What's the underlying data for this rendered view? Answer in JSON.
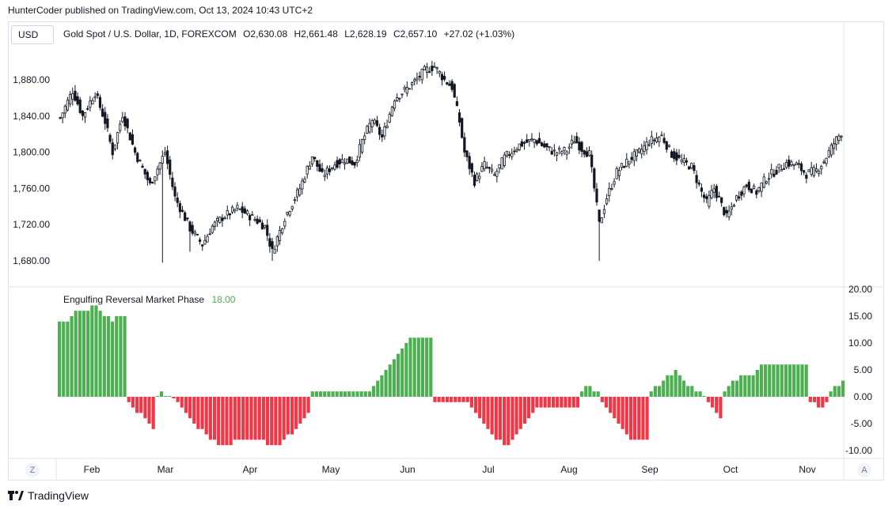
{
  "caption": "HunterCoder published on TradingView.com, Oct 13, 2024 10:43 UTC+2",
  "currency_button": "USD",
  "symbol": {
    "name": "Gold Spot / U.S. Dollar, 1D, FOREXCOM",
    "open": "O2,630.08",
    "high": "H2,661.48",
    "low": "L2,628.19",
    "close": "C2,657.10",
    "change": "+27.02 (+1.03%)"
  },
  "indicator": {
    "name": "Engulfing Reversal Market Phase",
    "value": "18.00"
  },
  "bottom_buttons": {
    "left": "Z",
    "right": "A"
  },
  "logo_text": "TradingView",
  "colors": {
    "up": "#4caf50",
    "down": "#f23645",
    "candle": "#131722",
    "grid": "#f0f3fa"
  },
  "chart_data": [
    {
      "type": "candlestick",
      "title": "Gold Spot / U.S. Dollar, 1D, FOREXCOM",
      "yticks": [
        "1,680.00",
        "1,720.00",
        "1,760.00",
        "1,800.00",
        "1,840.00",
        "1,880.00"
      ],
      "ylim": [
        1664,
        1902
      ],
      "xticks": [
        "Feb",
        "Mar",
        "Apr",
        "May",
        "Jun",
        "Jul",
        "Aug",
        "Sep",
        "Oct",
        "Nov"
      ],
      "close_path": [
        [
          0,
          1838
        ],
        [
          5,
          1868
        ],
        [
          9,
          1840
        ],
        [
          14,
          1866
        ],
        [
          18,
          1834
        ],
        [
          21,
          1800
        ],
        [
          25,
          1842
        ],
        [
          30,
          1800
        ],
        [
          36,
          1764
        ],
        [
          42,
          1800
        ],
        [
          46,
          1750
        ],
        [
          52,
          1716
        ],
        [
          57,
          1698
        ],
        [
          61,
          1718
        ],
        [
          65,
          1728
        ],
        [
          71,
          1738
        ],
        [
          77,
          1728
        ],
        [
          82,
          1718
        ],
        [
          85,
          1690
        ],
        [
          90,
          1728
        ],
        [
          96,
          1760
        ],
        [
          101,
          1796
        ],
        [
          105,
          1774
        ],
        [
          110,
          1787
        ],
        [
          114,
          1792
        ],
        [
          118,
          1788
        ],
        [
          121,
          1812
        ],
        [
          125,
          1836
        ],
        [
          129,
          1816
        ],
        [
          134,
          1860
        ],
        [
          138,
          1868
        ],
        [
          142,
          1878
        ],
        [
          146,
          1890
        ],
        [
          150,
          1895
        ],
        [
          154,
          1880
        ],
        [
          157,
          1872
        ],
        [
          160,
          1834
        ],
        [
          162,
          1800
        ],
        [
          166,
          1768
        ],
        [
          170,
          1786
        ],
        [
          174,
          1774
        ],
        [
          178,
          1794
        ],
        [
          184,
          1808
        ],
        [
          190,
          1814
        ],
        [
          194,
          1806
        ],
        [
          198,
          1800
        ],
        [
          203,
          1802
        ],
        [
          206,
          1814
        ],
        [
          209,
          1804
        ],
        [
          212,
          1798
        ],
        [
          214,
          1760
        ],
        [
          216,
          1720
        ],
        [
          219,
          1750
        ],
        [
          223,
          1778
        ],
        [
          228,
          1792
        ],
        [
          232,
          1800
        ],
        [
          236,
          1812
        ],
        [
          241,
          1818
        ],
        [
          245,
          1798
        ],
        [
          249,
          1790
        ],
        [
          253,
          1784
        ],
        [
          257,
          1756
        ],
        [
          259,
          1744
        ],
        [
          262,
          1760
        ],
        [
          264,
          1748
        ],
        [
          267,
          1728
        ],
        [
          271,
          1750
        ],
        [
          275,
          1764
        ],
        [
          279,
          1756
        ],
        [
          283,
          1772
        ],
        [
          287,
          1780
        ],
        [
          291,
          1788
        ],
        [
          295,
          1786
        ],
        [
          299,
          1776
        ],
        [
          303,
          1780
        ],
        [
          306,
          1790
        ],
        [
          310,
          1810
        ],
        [
          313,
          1822
        ]
      ],
      "spikes": [
        [
          216,
          1680
        ],
        [
          52,
          1690
        ],
        [
          85,
          1680
        ],
        [
          41,
          1678
        ]
      ]
    },
    {
      "type": "bar",
      "title": "Engulfing Reversal Market Phase",
      "yticks": [
        "20.00",
        "15.00",
        "10.00",
        "5.00",
        "0.00",
        "-5.00",
        "-10.00"
      ],
      "ylim": [
        -11,
        20
      ],
      "runs": [
        [
          3,
          14
        ],
        [
          1,
          15
        ],
        [
          4,
          16
        ],
        [
          2,
          17
        ],
        [
          1,
          16
        ],
        [
          2,
          15
        ],
        [
          1,
          14
        ],
        [
          3,
          15
        ],
        [
          1,
          -1
        ],
        [
          1,
          -2
        ],
        [
          2,
          -3
        ],
        [
          1,
          -4
        ],
        [
          1,
          -5
        ],
        [
          1,
          -6
        ],
        [
          1,
          0
        ],
        [
          1,
          1
        ],
        [
          1,
          0
        ],
        [
          1,
          0
        ],
        [
          1,
          -0.3
        ],
        [
          1,
          -1
        ],
        [
          1,
          -2
        ],
        [
          1,
          -3
        ],
        [
          1,
          -4
        ],
        [
          1,
          -5
        ],
        [
          2,
          -6
        ],
        [
          1,
          -7
        ],
        [
          2,
          -8
        ],
        [
          4,
          -9
        ],
        [
          8,
          -8
        ],
        [
          4,
          -9
        ],
        [
          1,
          -8
        ],
        [
          2,
          -7
        ],
        [
          1,
          -6
        ],
        [
          1,
          -5
        ],
        [
          1,
          -4
        ],
        [
          1,
          -3
        ],
        [
          15,
          1
        ],
        [
          1,
          2
        ],
        [
          1,
          3
        ],
        [
          1,
          4
        ],
        [
          1,
          5
        ],
        [
          1,
          6
        ],
        [
          1,
          7
        ],
        [
          1,
          8
        ],
        [
          1,
          9
        ],
        [
          1,
          10
        ],
        [
          6,
          11
        ],
        [
          9,
          -1
        ],
        [
          1,
          -2
        ],
        [
          1,
          -3
        ],
        [
          1,
          -4
        ],
        [
          1,
          -5
        ],
        [
          1,
          -6
        ],
        [
          1,
          -7
        ],
        [
          2,
          -8
        ],
        [
          2,
          -9
        ],
        [
          1,
          -8
        ],
        [
          1,
          -7
        ],
        [
          1,
          -6
        ],
        [
          1,
          -5
        ],
        [
          1,
          -4
        ],
        [
          1,
          -3
        ],
        [
          11,
          -2
        ],
        [
          1,
          1
        ],
        [
          1,
          2
        ],
        [
          1,
          2
        ],
        [
          1,
          1
        ],
        [
          1,
          1
        ],
        [
          1,
          -1
        ],
        [
          1,
          -2
        ],
        [
          1,
          -3
        ],
        [
          1,
          -4
        ],
        [
          1,
          -5
        ],
        [
          1,
          -6
        ],
        [
          1,
          -7
        ],
        [
          5,
          -8
        ],
        [
          1,
          1
        ],
        [
          1,
          2
        ],
        [
          1,
          2
        ],
        [
          1,
          3
        ],
        [
          1,
          4
        ],
        [
          1,
          4
        ],
        [
          1,
          5
        ],
        [
          1,
          4
        ],
        [
          1,
          3
        ],
        [
          2,
          2
        ],
        [
          1,
          1
        ],
        [
          1,
          1
        ],
        [
          1,
          0
        ],
        [
          1,
          -1
        ],
        [
          1,
          -2
        ],
        [
          1,
          -3
        ],
        [
          1,
          -4
        ],
        [
          1,
          1
        ],
        [
          1,
          2
        ],
        [
          1,
          3
        ],
        [
          1,
          3
        ],
        [
          1,
          4
        ],
        [
          1,
          4
        ],
        [
          2,
          4
        ],
        [
          1,
          5
        ],
        [
          12,
          6
        ],
        [
          1,
          -1
        ],
        [
          1,
          -1
        ],
        [
          1,
          -2
        ],
        [
          1,
          -2
        ],
        [
          1,
          -1
        ],
        [
          1,
          1
        ],
        [
          1,
          2
        ],
        [
          1,
          2
        ],
        [
          1,
          3
        ]
      ]
    }
  ]
}
